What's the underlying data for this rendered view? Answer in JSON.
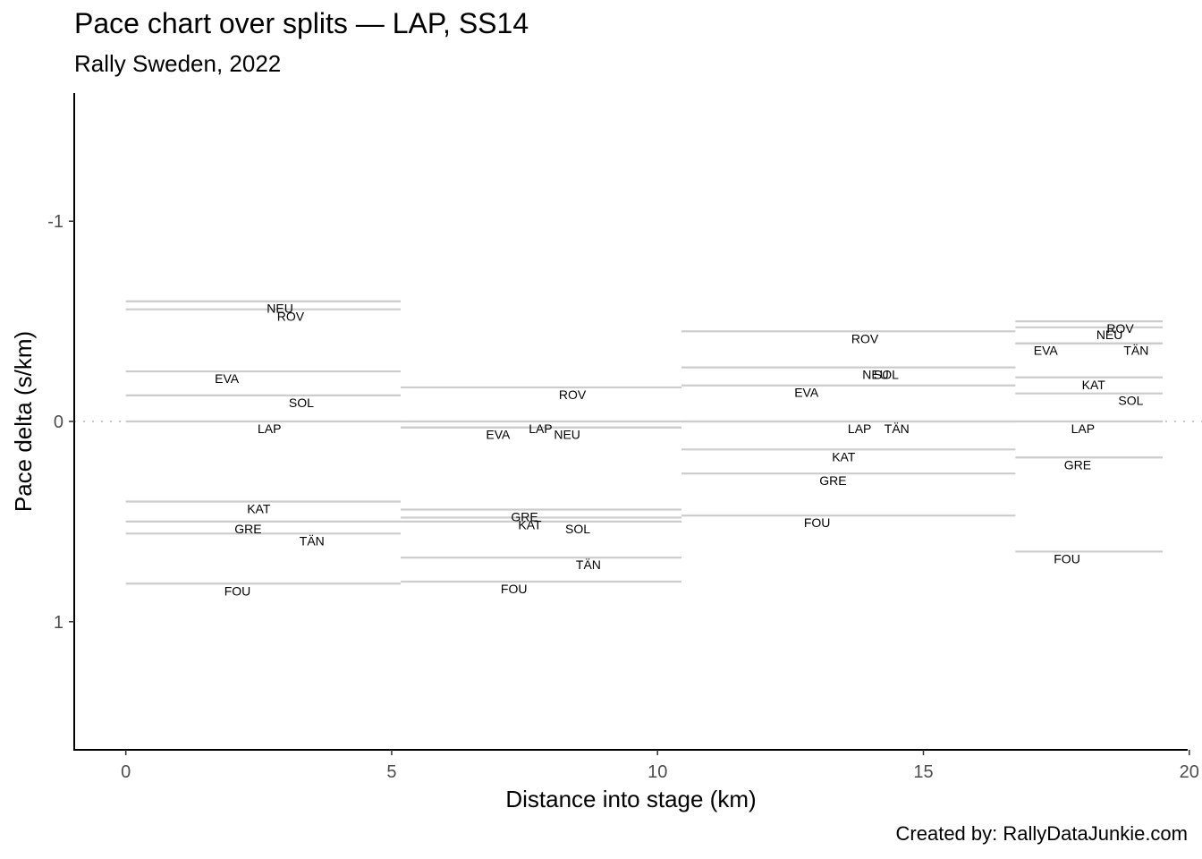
{
  "chart_data": {
    "type": "line",
    "title": "Pace chart over splits — LAP, SS14",
    "subtitle": "Rally Sweden, 2022",
    "caption": "Created by: RallyDataJunkie.com",
    "xlabel": "Distance into stage (km)",
    "ylabel": "Pace delta (s/km)",
    "xlim": [
      -0.97,
      19.97
    ],
    "ylim": [
      1.64,
      -1.64
    ],
    "y_reversed": true,
    "xticks": [
      0,
      5,
      10,
      15,
      20
    ],
    "xtick_labels": [
      "0",
      "5",
      "10",
      "15",
      "20"
    ],
    "yticks": [
      -1,
      0,
      1
    ],
    "ytick_labels": [
      "-1",
      "0",
      "1"
    ],
    "reference_line": 0,
    "splits": [
      [
        0,
        5.17
      ],
      [
        5.17,
        10.45
      ],
      [
        10.45,
        16.73
      ],
      [
        16.73,
        19.5
      ]
    ],
    "series": [
      {
        "name": "NEU",
        "values": [
          -0.6,
          0.03,
          -0.27,
          -0.47
        ],
        "label_x": [
          2.9,
          8.3,
          14.1,
          18.5
        ]
      },
      {
        "name": "ROV",
        "values": [
          -0.56,
          -0.17,
          -0.45,
          -0.5
        ],
        "label_x": [
          3.1,
          8.4,
          13.9,
          18.7
        ]
      },
      {
        "name": "EVA",
        "values": [
          -0.25,
          0.03,
          -0.18,
          -0.39
        ],
        "label_x": [
          1.9,
          7.0,
          12.8,
          17.3
        ]
      },
      {
        "name": "SOL",
        "values": [
          -0.13,
          0.5,
          -0.27,
          -0.14
        ],
        "label_x": [
          3.3,
          8.5,
          14.3,
          18.9
        ]
      },
      {
        "name": "LAP",
        "values": [
          0,
          0,
          0,
          0
        ],
        "label_x": [
          2.7,
          7.8,
          13.8,
          18.0
        ]
      },
      {
        "name": "KAT",
        "values": [
          0.4,
          0.48,
          0.14,
          -0.22
        ],
        "label_x": [
          2.5,
          7.6,
          13.5,
          18.2
        ]
      },
      {
        "name": "GRE",
        "values": [
          0.5,
          0.44,
          0.26,
          0.18
        ],
        "label_x": [
          2.3,
          7.5,
          13.3,
          17.9
        ]
      },
      {
        "name": "TÄN",
        "values": [
          0.56,
          0.68,
          0,
          -0.39
        ],
        "label_x": [
          3.5,
          8.7,
          14.5,
          19.0
        ]
      },
      {
        "name": "FOU",
        "values": [
          0.81,
          0.8,
          0.47,
          0.65
        ],
        "label_x": [
          2.1,
          7.3,
          13.0,
          17.7
        ]
      }
    ]
  }
}
